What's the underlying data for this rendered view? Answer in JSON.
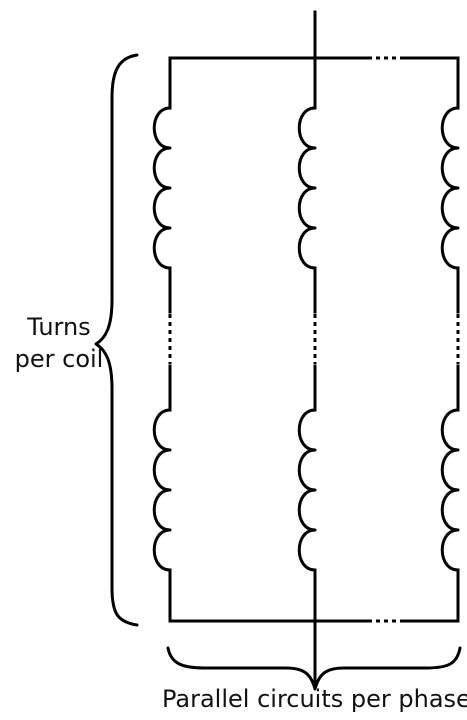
{
  "labels": {
    "turns_line1": "Turns",
    "turns_line2": "per coil",
    "parallel": "Parallel circuits per phase"
  },
  "colors": {
    "stroke": "#000000",
    "background": "#ffffff"
  }
}
